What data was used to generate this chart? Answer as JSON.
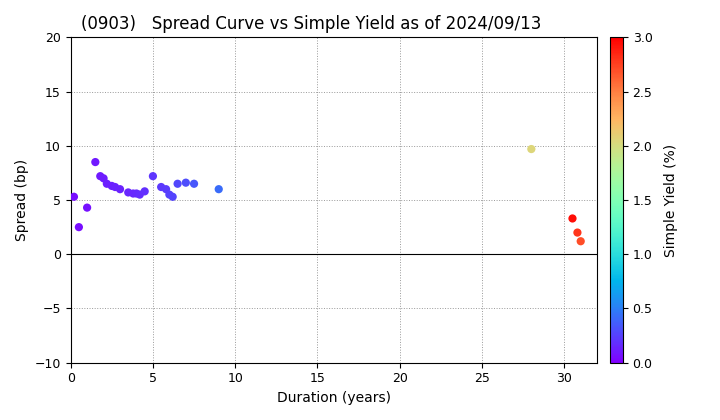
{
  "title": "(0903)   Spread Curve vs Simple Yield as of 2024/09/13",
  "xlabel": "Duration (years)",
  "ylabel": "Spread (bp)",
  "colorbar_label": "Simple Yield (%)",
  "xlim": [
    0,
    32
  ],
  "ylim": [
    -10.0,
    20.0
  ],
  "xticks": [
    0,
    5,
    10,
    15,
    20,
    25,
    30
  ],
  "yticks": [
    -10.0,
    -5.0,
    0.0,
    5.0,
    10.0,
    15.0,
    20.0
  ],
  "cmap_vmin": 0.0,
  "cmap_vmax": 3.0,
  "cbar_ticks": [
    0.0,
    0.5,
    1.0,
    1.5,
    2.0,
    2.5,
    3.0
  ],
  "points": [
    {
      "duration": 0.2,
      "spread": 5.3,
      "yield": 0.05
    },
    {
      "duration": 0.5,
      "spread": 2.5,
      "yield": 0.05
    },
    {
      "duration": 1.0,
      "spread": 4.3,
      "yield": 0.07
    },
    {
      "duration": 1.5,
      "spread": 8.5,
      "yield": 0.1
    },
    {
      "duration": 1.8,
      "spread": 7.2,
      "yield": 0.1
    },
    {
      "duration": 2.0,
      "spread": 7.0,
      "yield": 0.11
    },
    {
      "duration": 2.2,
      "spread": 6.5,
      "yield": 0.12
    },
    {
      "duration": 2.5,
      "spread": 6.3,
      "yield": 0.12
    },
    {
      "duration": 2.7,
      "spread": 6.2,
      "yield": 0.13
    },
    {
      "duration": 3.0,
      "spread": 6.0,
      "yield": 0.13
    },
    {
      "duration": 3.5,
      "spread": 5.7,
      "yield": 0.15
    },
    {
      "duration": 3.8,
      "spread": 5.6,
      "yield": 0.15
    },
    {
      "duration": 4.0,
      "spread": 5.6,
      "yield": 0.16
    },
    {
      "duration": 4.2,
      "spread": 5.5,
      "yield": 0.17
    },
    {
      "duration": 4.5,
      "spread": 5.8,
      "yield": 0.18
    },
    {
      "duration": 5.0,
      "spread": 7.2,
      "yield": 0.2
    },
    {
      "duration": 5.5,
      "spread": 6.2,
      "yield": 0.22
    },
    {
      "duration": 5.8,
      "spread": 6.0,
      "yield": 0.23
    },
    {
      "duration": 6.0,
      "spread": 5.5,
      "yield": 0.25
    },
    {
      "duration": 6.2,
      "spread": 5.3,
      "yield": 0.26
    },
    {
      "duration": 6.5,
      "spread": 6.5,
      "yield": 0.28
    },
    {
      "duration": 7.0,
      "spread": 6.6,
      "yield": 0.3
    },
    {
      "duration": 7.5,
      "spread": 6.5,
      "yield": 0.33
    },
    {
      "duration": 9.0,
      "spread": 6.0,
      "yield": 0.42
    },
    {
      "duration": 28.0,
      "spread": 9.7,
      "yield": 2.05
    },
    {
      "duration": 30.5,
      "spread": 3.3,
      "yield": 2.95
    },
    {
      "duration": 30.8,
      "spread": 2.0,
      "yield": 2.8
    },
    {
      "duration": 31.0,
      "spread": 1.2,
      "yield": 2.7
    }
  ],
  "bg_color": "#ffffff",
  "grid_color": "#999999",
  "marker_size": 35,
  "title_fontsize": 12,
  "label_fontsize": 10,
  "tick_fontsize": 9,
  "cbar_fontsize": 10,
  "figsize": [
    7.2,
    4.2
  ],
  "dpi": 100
}
